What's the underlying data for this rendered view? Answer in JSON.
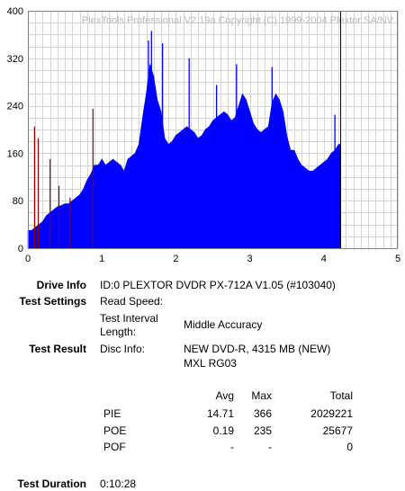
{
  "chart_data": {
    "type": "area",
    "title": "PlexTools Professional V2.19a Copyright (C) 1999-2004 Plextor SA/NV",
    "xlim": [
      0,
      5
    ],
    "ylim": [
      0,
      400
    ],
    "x_ticks": [
      "0",
      "1",
      "2",
      "3",
      "4",
      "5"
    ],
    "y_ticks": [
      "0",
      "80",
      "160",
      "240",
      "320",
      "400"
    ],
    "grid": true,
    "marker_x": 4.22,
    "colors": {
      "pie": "#0000ff",
      "poe": "#8b0000",
      "marker": "#000000",
      "grid": "#d4d4d4"
    },
    "series": [
      {
        "name": "PIE",
        "x": [
          0.0,
          0.05,
          0.1,
          0.15,
          0.2,
          0.25,
          0.3,
          0.35,
          0.4,
          0.45,
          0.5,
          0.55,
          0.6,
          0.65,
          0.7,
          0.75,
          0.8,
          0.85,
          0.9,
          0.95,
          1.0,
          1.05,
          1.1,
          1.15,
          1.2,
          1.25,
          1.3,
          1.35,
          1.4,
          1.45,
          1.5,
          1.55,
          1.6,
          1.65,
          1.7,
          1.75,
          1.8,
          1.85,
          1.9,
          1.95,
          2.0,
          2.05,
          2.1,
          2.15,
          2.2,
          2.25,
          2.3,
          2.35,
          2.4,
          2.45,
          2.5,
          2.55,
          2.6,
          2.65,
          2.7,
          2.75,
          2.8,
          2.85,
          2.9,
          2.95,
          3.0,
          3.05,
          3.1,
          3.15,
          3.2,
          3.25,
          3.3,
          3.35,
          3.4,
          3.45,
          3.5,
          3.55,
          3.6,
          3.65,
          3.7,
          3.75,
          3.8,
          3.85,
          3.9,
          3.95,
          4.0,
          4.05,
          4.1,
          4.15,
          4.2,
          4.22
        ],
        "values": [
          30,
          30,
          35,
          40,
          45,
          55,
          60,
          65,
          70,
          72,
          75,
          75,
          80,
          85,
          90,
          100,
          115,
          125,
          140,
          140,
          150,
          140,
          145,
          150,
          145,
          140,
          130,
          150,
          155,
          160,
          175,
          220,
          260,
          310,
          290,
          250,
          230,
          185,
          175,
          180,
          190,
          195,
          200,
          205,
          200,
          195,
          185,
          190,
          200,
          205,
          215,
          220,
          225,
          230,
          225,
          215,
          220,
          240,
          260,
          250,
          230,
          210,
          200,
          195,
          200,
          205,
          245,
          260,
          250,
          230,
          190,
          165,
          165,
          150,
          140,
          135,
          130,
          130,
          135,
          140,
          145,
          150,
          160,
          165,
          175,
          175
        ],
        "peaks": [
          [
            1.67,
            366
          ],
          [
            1.63,
            350
          ],
          [
            1.82,
            345
          ],
          [
            2.18,
            320
          ],
          [
            2.82,
            310
          ],
          [
            3.3,
            305
          ],
          [
            2.55,
            275
          ],
          [
            4.15,
            225
          ]
        ]
      },
      {
        "name": "POE",
        "x": [
          0.09,
          0.14,
          0.3,
          0.42,
          0.57,
          0.88
        ],
        "values": [
          205,
          185,
          150,
          105,
          85,
          235
        ]
      }
    ]
  },
  "info": {
    "drive_info_label": "Drive Info",
    "drive_info_value": "ID:0 PLEXTOR DVDR PX-712A V1.05 (#103040)",
    "test_settings_label": "Test Settings",
    "read_speed_label": "Read Speed:",
    "test_interval_label": "Test Interval Length:",
    "test_interval_value": "Middle Accuracy",
    "test_result_label": "Test Result",
    "disc_info_label": "Disc Info:",
    "disc_info_value_1": "NEW DVD-R, 4315 MB (NEW)",
    "disc_info_value_2": "MXL RG03",
    "test_duration_label": "Test Duration",
    "test_duration_value": "0:10:28"
  },
  "results": {
    "headers": {
      "avg": "Avg",
      "max": "Max",
      "total": "Total"
    },
    "rows": [
      {
        "name": "PIE",
        "avg": "14.71",
        "max": "366",
        "total": "2029221"
      },
      {
        "name": "POE",
        "avg": "0.19",
        "max": "235",
        "total": "25677"
      },
      {
        "name": "POF",
        "avg": "-",
        "max": "-",
        "total": "0"
      }
    ]
  }
}
